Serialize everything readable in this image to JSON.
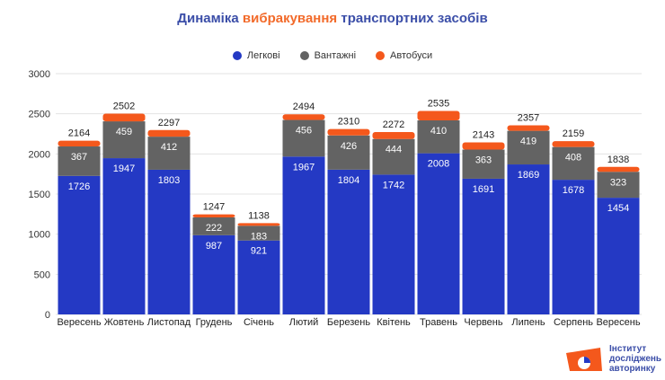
{
  "title": {
    "part1": "Динаміка ",
    "part2": "вибракування",
    "part3": " транспортних засобів"
  },
  "colors": {
    "title": "#3b4ea8",
    "highlight": "#f26a2a",
    "cars": "#2439c4",
    "trucks": "#636363",
    "buses": "#f4581c"
  },
  "logo": {
    "line1": "Інститут",
    "line2": "досліджень",
    "line3": "авторинку",
    "icon": "pie-chart-logo-icon"
  },
  "chart_data": {
    "type": "bar",
    "stacked": true,
    "categories": [
      "Вересень",
      "Жовтень",
      "Листопад",
      "Грудень",
      "Січень",
      "Лютий",
      "Березень",
      "Квітень",
      "Травень",
      "Червень",
      "Липень",
      "Серпень",
      "Вересень"
    ],
    "series": [
      {
        "name": "Легкові",
        "color": "#2439c4",
        "values": [
          1726,
          1947,
          1803,
          987,
          921,
          1967,
          1804,
          1742,
          2008,
          1691,
          1869,
          1678,
          1454
        ]
      },
      {
        "name": "Вантажні",
        "color": "#636363",
        "values": [
          367,
          459,
          412,
          222,
          183,
          456,
          426,
          444,
          410,
          363,
          419,
          408,
          323
        ]
      },
      {
        "name": "Автобуси",
        "color": "#f4581c",
        "values": [
          71,
          96,
          82,
          38,
          34,
          71,
          80,
          86,
          117,
          89,
          69,
          73,
          61
        ]
      }
    ],
    "totals": [
      2164,
      2502,
      2297,
      1247,
      1138,
      2494,
      2310,
      2272,
      2535,
      2143,
      2357,
      2159,
      1838
    ],
    "yticks": [
      0,
      500,
      1000,
      1500,
      2000,
      2500,
      3000
    ],
    "ylim": [
      0,
      3000
    ],
    "grid": true,
    "legend": "top-center"
  }
}
